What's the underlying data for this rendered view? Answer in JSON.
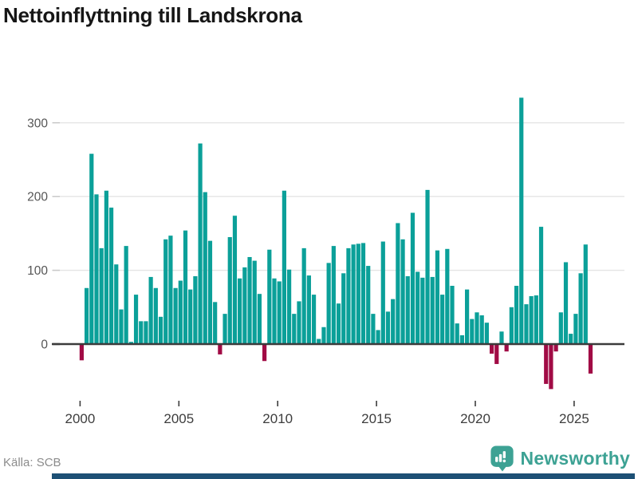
{
  "title": "Nettoinflyttning till Landskrona",
  "source": "Källa: SCB",
  "branding": {
    "name": "Newsworthy",
    "icon": "bar-chart-speech-bubble-icon"
  },
  "colors": {
    "positive_bar": "#0ba099",
    "negative_bar": "#a10b45",
    "gridline": "#e4e4e4",
    "zero_line": "#3b3b3b",
    "y_tick_dash": "#c9c9c9",
    "y_label_text": "#565656",
    "x_label_text": "#3d3d3d",
    "title_text": "#161616",
    "source_text": "#8c8c8c",
    "brand_teal": "#3da294",
    "bottom_strip": "#1d5075"
  },
  "chart_data": {
    "type": "bar",
    "title": "Nettoinflyttning till Landskrona",
    "frequency": "quarterly",
    "start_year": 2000,
    "start_quarter": 1,
    "end_year": 2025,
    "end_quarter": 4,
    "values": [
      -22,
      76,
      258,
      203,
      130,
      208,
      185,
      108,
      47,
      133,
      3,
      67,
      31,
      31,
      91,
      76,
      37,
      142,
      147,
      76,
      86,
      154,
      74,
      92,
      272,
      206,
      140,
      57,
      -14,
      41,
      145,
      174,
      89,
      104,
      118,
      113,
      68,
      -23,
      128,
      89,
      85,
      208,
      101,
      41,
      58,
      130,
      93,
      67,
      7,
      23,
      110,
      133,
      55,
      96,
      130,
      135,
      136,
      137,
      106,
      41,
      19,
      139,
      44,
      61,
      164,
      142,
      92,
      178,
      98,
      90,
      209,
      91,
      127,
      67,
      129,
      79,
      28,
      12,
      74,
      34,
      43,
      39,
      29,
      -13,
      -27,
      17,
      -10,
      50,
      79,
      334,
      54,
      65,
      66,
      159,
      -54,
      -61,
      -10,
      43,
      111,
      14,
      41,
      96,
      135,
      -40
    ],
    "x_ticks": [
      2000,
      2005,
      2010,
      2015,
      2020,
      2025
    ],
    "y_ticks": [
      0,
      100,
      200,
      300
    ],
    "ylim": [
      -70,
      350
    ],
    "grid": "horizontal",
    "legend": "none",
    "xlabel": "",
    "ylabel": ""
  }
}
